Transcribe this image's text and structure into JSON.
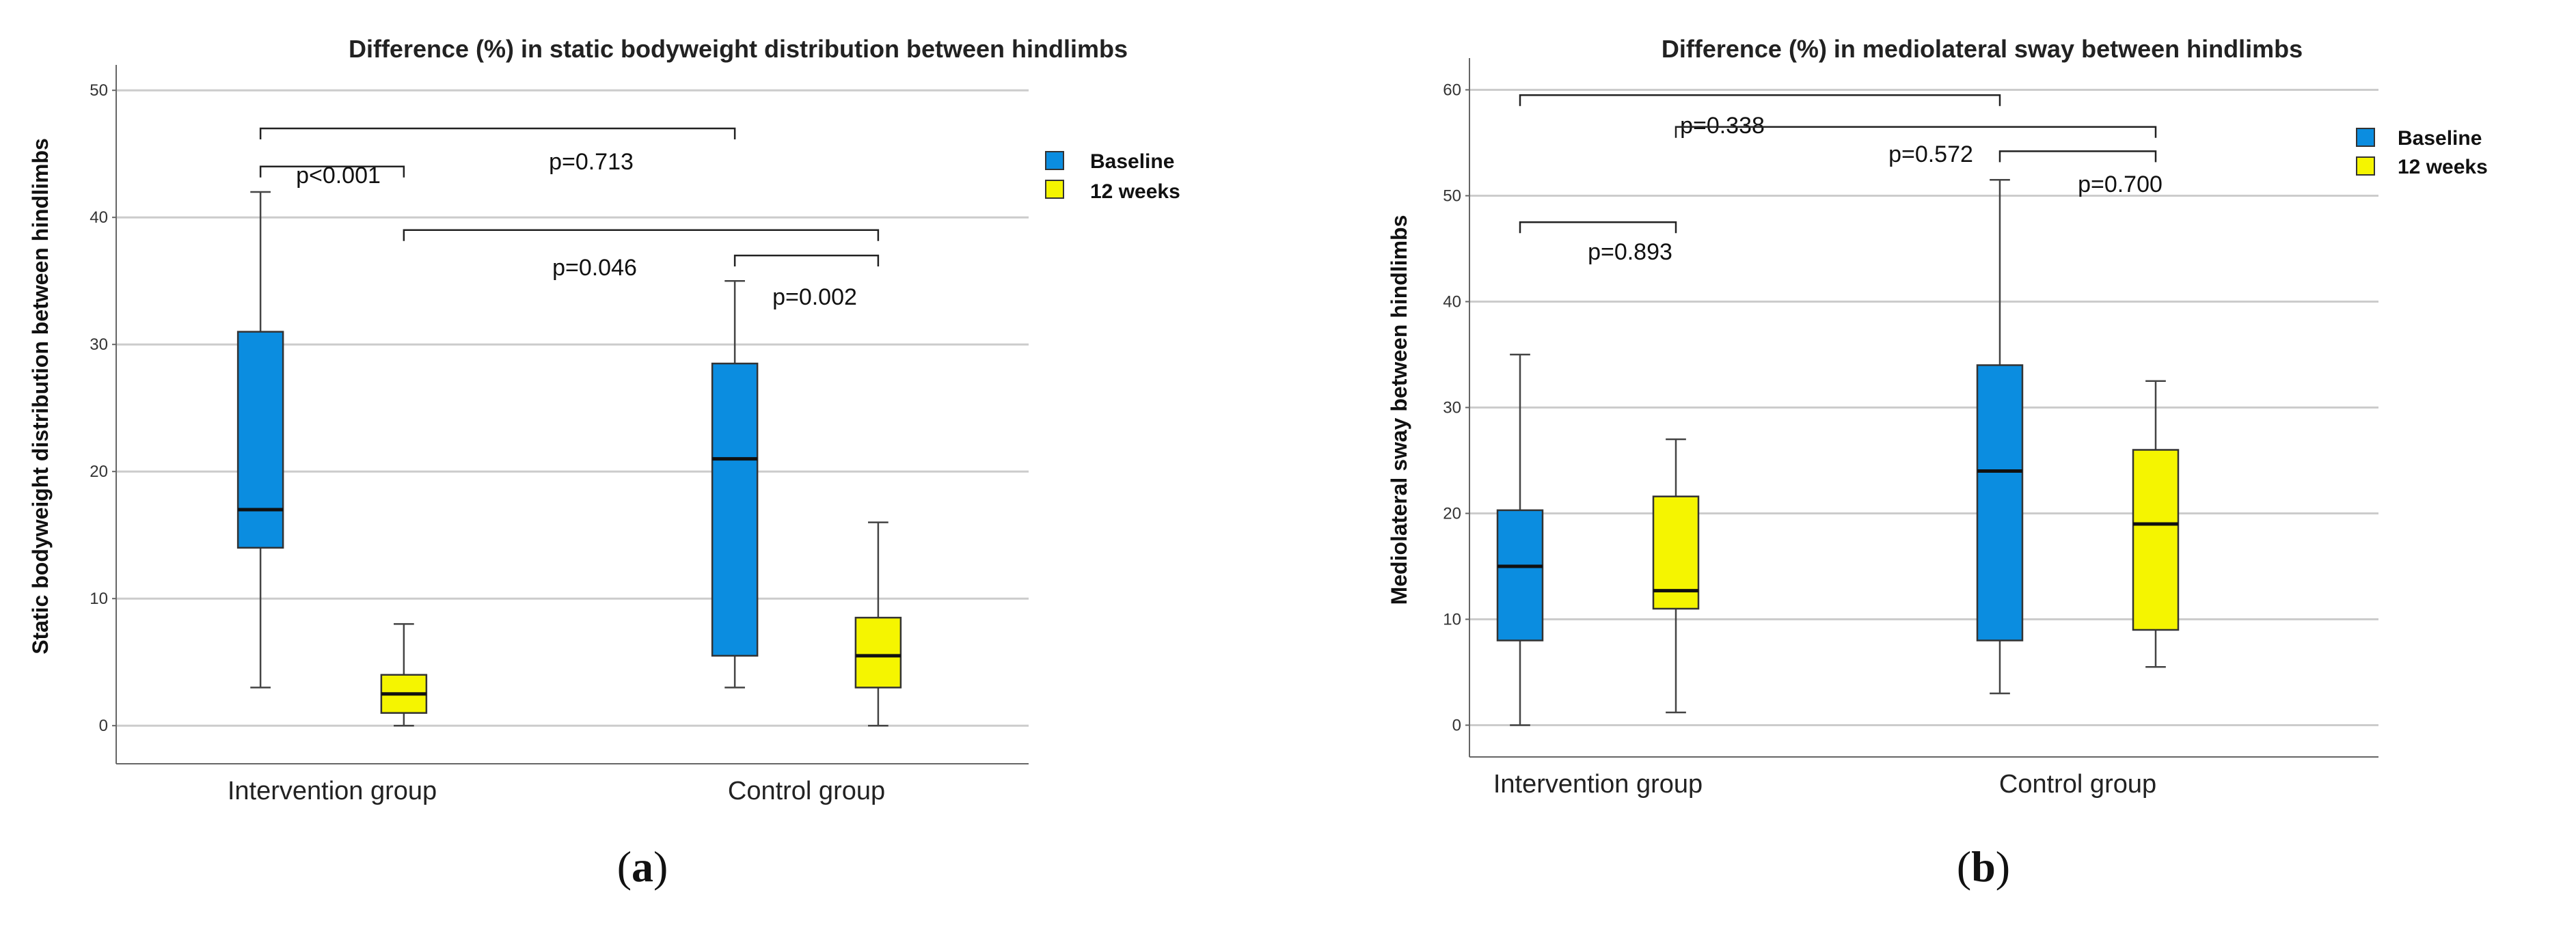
{
  "colors": {
    "baseline": "#0b8de0",
    "weeks12": "#f5f500",
    "grid": "#cccccc",
    "axis": "#666666"
  },
  "chart_data": [
    {
      "id": "a",
      "type": "box",
      "caption_letter": "a",
      "title": "Difference (%) in static bodyweight distribution between hindlimbs",
      "xlabel": "",
      "ylabel": "Static bodyweight distribution between hindlimbs",
      "ylim": [
        -3,
        52
      ],
      "yticks": [
        0,
        10,
        20,
        30,
        40,
        50
      ],
      "categories": [
        "Intervention group",
        "Control group"
      ],
      "legend": [
        "Baseline",
        "12 weeks"
      ],
      "series": [
        {
          "name": "Baseline",
          "boxes": [
            {
              "whisker_low": 3,
              "q1": 14,
              "median": 17,
              "q3": 31,
              "whisker_high": 42
            },
            {
              "whisker_low": 3,
              "q1": 5.5,
              "median": 21,
              "q3": 28.5,
              "whisker_high": 35
            }
          ]
        },
        {
          "name": "12 weeks",
          "boxes": [
            {
              "whisker_low": 0,
              "q1": 1,
              "median": 2.5,
              "q3": 4,
              "whisker_high": 8
            },
            {
              "whisker_low": 0,
              "q1": 3,
              "median": 5.5,
              "q3": 8.5,
              "whisker_high": 16
            }
          ]
        }
      ],
      "annotations": [
        {
          "label": "p<0.001",
          "from": [
            0,
            0
          ],
          "to": [
            0,
            1
          ],
          "y": 44
        },
        {
          "label": "p=0.713",
          "from": [
            0,
            0
          ],
          "to": [
            1,
            0
          ],
          "y": 47
        },
        {
          "label": "p=0.046",
          "from": [
            0,
            1
          ],
          "to": [
            1,
            1
          ],
          "y": 39
        },
        {
          "label": "p=0.002",
          "from": [
            1,
            0
          ],
          "to": [
            1,
            1
          ],
          "y": 37
        }
      ]
    },
    {
      "id": "b",
      "type": "box",
      "caption_letter": "b",
      "title": "Difference (%) in mediolateral sway between hindlimbs",
      "xlabel": "",
      "ylabel": "Mediolateral sway between hindlimbs",
      "ylim": [
        -3,
        63
      ],
      "yticks": [
        0,
        10,
        20,
        30,
        40,
        50,
        60
      ],
      "categories": [
        "Intervention group",
        "Control group"
      ],
      "legend": [
        "Baseline",
        "12 weeks"
      ],
      "series": [
        {
          "name": "Baseline",
          "boxes": [
            {
              "whisker_low": 0,
              "q1": 8,
              "median": 15,
              "q3": 20.3,
              "whisker_high": 35
            },
            {
              "whisker_low": 3,
              "q1": 8,
              "median": 24,
              "q3": 34,
              "whisker_high": 51.5
            }
          ]
        },
        {
          "name": "12 weeks",
          "boxes": [
            {
              "whisker_low": 1.2,
              "q1": 11,
              "median": 12.7,
              "q3": 21.6,
              "whisker_high": 27
            },
            {
              "whisker_low": 5.5,
              "q1": 9,
              "median": 19,
              "q3": 26,
              "whisker_high": 32.5
            }
          ]
        }
      ],
      "annotations": [
        {
          "label": "p=0.893",
          "from": [
            0,
            0
          ],
          "to": [
            0,
            1
          ],
          "y": 47.5
        },
        {
          "label": "p=0.338",
          "from": [
            0,
            0
          ],
          "to": [
            1,
            0
          ],
          "y": 59.5
        },
        {
          "label": "p=0.572",
          "from": [
            0,
            1
          ],
          "to": [
            1,
            1
          ],
          "y": 56.5
        },
        {
          "label": "p=0.700",
          "from": [
            1,
            0
          ],
          "to": [
            1,
            1
          ],
          "y": 54.2
        }
      ]
    }
  ]
}
